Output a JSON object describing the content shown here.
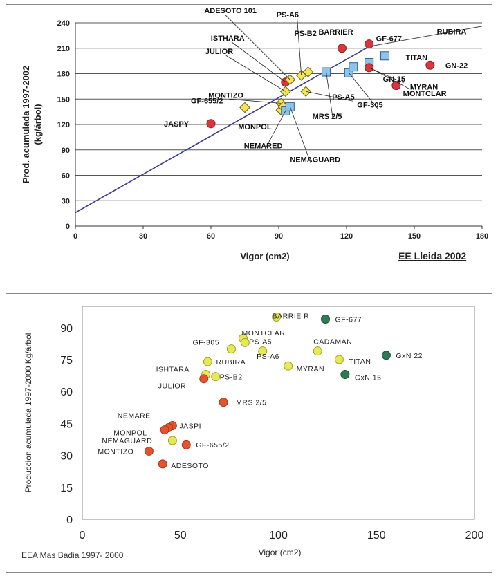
{
  "chart_data": [
    {
      "type": "scatter",
      "title": "",
      "xlabel": "Vigor (cm2)",
      "ylabel": "Prod. acumulada 1997-2002 (kg/árbol)",
      "footer": "EE Lleida 2002",
      "xlim": [
        0,
        180
      ],
      "ylim": [
        0,
        240
      ],
      "xticks": [
        0,
        30,
        60,
        90,
        120,
        150,
        180
      ],
      "yticks": [
        0,
        30,
        60,
        90,
        120,
        150,
        180,
        210,
        240
      ],
      "grid": "horizontal",
      "colors": {
        "red": "#d9363e",
        "yellow": "#f2e55c",
        "blue": "#8ec4ec",
        "line": "#3b3b8c"
      },
      "trendline": {
        "x": [
          0,
          130
        ],
        "y": [
          16,
          212
        ]
      },
      "extra_line": {
        "x": [
          130,
          180
        ],
        "y": [
          212,
          236
        ]
      },
      "points": [
        {
          "label": "JASPY",
          "x": 60,
          "y": 121,
          "marker": "red"
        },
        {
          "label": "GF-655/2",
          "x": 75,
          "y": 140,
          "marker": "yellow"
        },
        {
          "label": "MONTIZO",
          "x": 91,
          "y": 145,
          "marker": "yellow"
        },
        {
          "label": "MONPOL",
          "x": 91,
          "y": 137,
          "marker": "yellow"
        },
        {
          "label": "",
          "x": 92,
          "y": 141,
          "marker": "yellow"
        },
        {
          "label": "NEMARED",
          "x": 93,
          "y": 136,
          "marker": "blue"
        },
        {
          "label": "NEMAGUARD",
          "x": 95,
          "y": 141,
          "marker": "blue"
        },
        {
          "label": "JULIOR",
          "x": 93,
          "y": 159,
          "marker": "yellow"
        },
        {
          "label": "ISTHARA",
          "x": 93,
          "y": 170,
          "marker": "red"
        },
        {
          "label": "ADESOTO 101",
          "x": 95,
          "y": 173,
          "marker": "yellow"
        },
        {
          "label": "PS-A6",
          "x": 100,
          "y": 178,
          "marker": "yellow"
        },
        {
          "label": "PS-B2",
          "x": 103,
          "y": 182,
          "marker": "yellow"
        },
        {
          "label": "PS-A5",
          "x": 102,
          "y": 159,
          "marker": "yellow"
        },
        {
          "label": "MRS 2/5",
          "x": 111,
          "y": 182,
          "marker": "blue"
        },
        {
          "label": "GF-305",
          "x": 121,
          "y": 181,
          "marker": "blue"
        },
        {
          "label": "",
          "x": 123,
          "y": 188,
          "marker": "blue"
        },
        {
          "label": "BARRIER",
          "x": 118,
          "y": 210,
          "marker": "red"
        },
        {
          "label": "GF-677",
          "x": 130,
          "y": 215,
          "marker": "red"
        },
        {
          "label": "TITAN",
          "x": 137,
          "y": 201,
          "marker": "blue"
        },
        {
          "label": "",
          "x": 130,
          "y": 193,
          "marker": "blue"
        },
        {
          "label": "GN-15",
          "x": 130,
          "y": 187,
          "marker": "red"
        },
        {
          "label": "GN-22",
          "x": 157,
          "y": 190,
          "marker": "red"
        },
        {
          "label": "MYRAN",
          "x": 142,
          "y": 166,
          "marker": "red"
        },
        {
          "label": "MONTCLAR",
          "x": 0,
          "y": 0,
          "marker": "none"
        },
        {
          "label": "RUBIRA",
          "x": 0,
          "y": 0,
          "marker": "none"
        }
      ]
    },
    {
      "type": "scatter",
      "title": "",
      "xlabel": "Vigor (cm2)",
      "ylabel": "Produccion acumulada 1997-2000 Kg/árbol",
      "footer": "EEA Mas Badia 1997- 2000",
      "xlim": [
        0,
        200
      ],
      "ylim": [
        0,
        100
      ],
      "xticks": [
        0,
        50,
        100,
        150,
        200
      ],
      "yticks": [
        0,
        15,
        30,
        45,
        60,
        75,
        90
      ],
      "grid": "none",
      "colors": {
        "red": "#e2532e",
        "yellow": "#e6e85a",
        "green": "#2f7a55"
      },
      "points": [
        {
          "label": "BARRIE R",
          "x": 99,
          "y": 95,
          "marker": "yellow"
        },
        {
          "label": "GF-677",
          "x": 124,
          "y": 94,
          "marker": "green"
        },
        {
          "label": "MONTCLAR",
          "x": 82,
          "y": 85,
          "marker": "yellow"
        },
        {
          "label": "PS-A5",
          "x": 83,
          "y": 83,
          "marker": "yellow"
        },
        {
          "label": "GF-305",
          "x": 76,
          "y": 80,
          "marker": "yellow"
        },
        {
          "label": "",
          "x": 92,
          "y": 79,
          "marker": "yellow"
        },
        {
          "label": "CADAMAN",
          "x": 120,
          "y": 79,
          "marker": "yellow"
        },
        {
          "label": "TITAN",
          "x": 131,
          "y": 75,
          "marker": "yellow"
        },
        {
          "label": "GxN 22",
          "x": 155,
          "y": 77,
          "marker": "green"
        },
        {
          "label": "RUBIRA",
          "x": 64,
          "y": 74,
          "marker": "yellow"
        },
        {
          "label": "PS-A6",
          "x": 0,
          "y": 0,
          "marker": "none"
        },
        {
          "label": "MYRAN",
          "x": 105,
          "y": 72,
          "marker": "yellow"
        },
        {
          "label": "GxN 15",
          "x": 134,
          "y": 68,
          "marker": "green"
        },
        {
          "label": "ISHTARA",
          "x": 63,
          "y": 68,
          "marker": "yellow"
        },
        {
          "label": "PS-B2",
          "x": 68,
          "y": 67,
          "marker": "yellow"
        },
        {
          "label": "JULIOR",
          "x": 62,
          "y": 66,
          "marker": "red"
        },
        {
          "label": "MRS 2/5",
          "x": 72,
          "y": 55,
          "marker": "red"
        },
        {
          "label": "JASPI",
          "x": 46,
          "y": 44,
          "marker": "red"
        },
        {
          "label": "NEMARE",
          "x": 44,
          "y": 43,
          "marker": "red"
        },
        {
          "label": "MONPOL",
          "x": 42,
          "y": 42,
          "marker": "red"
        },
        {
          "label": "NEMAGUARD",
          "x": 46,
          "y": 37,
          "marker": "yellow"
        },
        {
          "label": "GF-655/2",
          "x": 53,
          "y": 35,
          "marker": "red"
        },
        {
          "label": "MONTIZO",
          "x": 34,
          "y": 32,
          "marker": "red"
        },
        {
          "label": "ADESOTO",
          "x": 41,
          "y": 26,
          "marker": "red"
        }
      ]
    }
  ]
}
